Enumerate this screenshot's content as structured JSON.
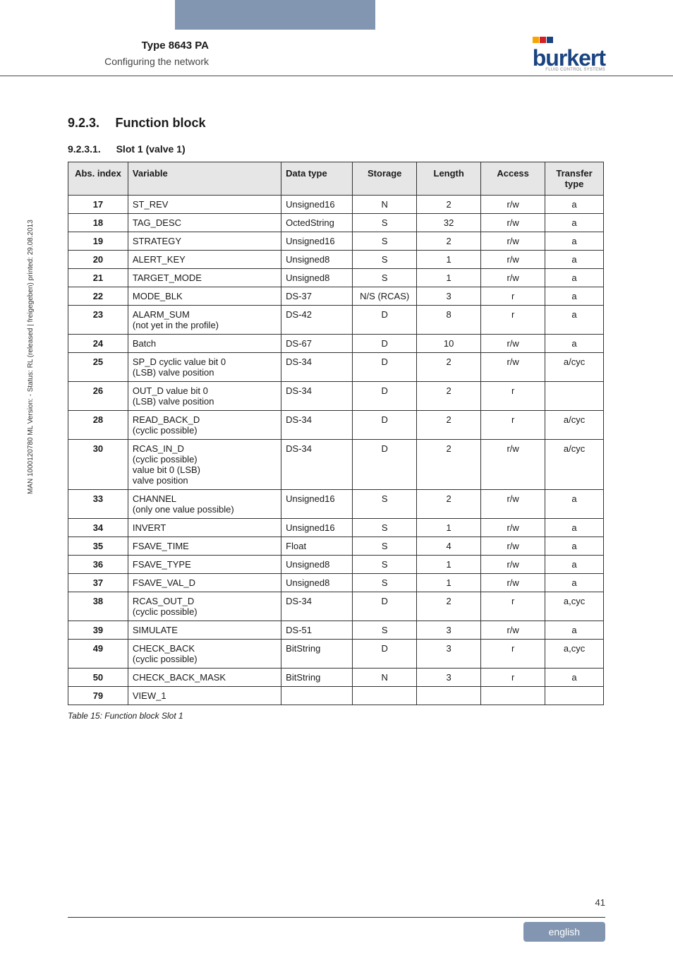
{
  "header": {
    "type_label": "Type 8643 PA",
    "subtitle": "Configuring the network",
    "logo_name": "burkert",
    "logo_sub": "FLUID CONTROL SYSTEMS",
    "logo_bar_colors": [
      "#f7a600",
      "#d41f26",
      "#1a4480"
    ],
    "logo_text_color": "#1a4480",
    "blue_bar_color": "#8396b1"
  },
  "side_text": "MAN 1000120780 ML Version: - Status: RL (released | freigegeben) printed: 29.08.2013",
  "section": {
    "num": "9.2.3.",
    "title": "Function block"
  },
  "subsection": {
    "num": "9.2.3.1.",
    "title": "Slot 1 (valve 1)"
  },
  "table": {
    "columns": [
      "Abs. index",
      "Variable",
      "Data type",
      "Storage",
      "Length",
      "Access",
      "Transfer type"
    ],
    "rows": [
      [
        "17",
        "ST_REV",
        "Unsigned16",
        "N",
        "2",
        "r/w",
        "a"
      ],
      [
        "18",
        "TAG_DESC",
        "OctedString",
        "S",
        "32",
        "r/w",
        "a"
      ],
      [
        "19",
        "STRATEGY",
        "Unsigned16",
        "S",
        "2",
        "r/w",
        "a"
      ],
      [
        "20",
        "ALERT_KEY",
        "Unsigned8",
        "S",
        "1",
        "r/w",
        "a"
      ],
      [
        "21",
        "TARGET_MODE",
        "Unsigned8",
        "S",
        "1",
        "r/w",
        "a"
      ],
      [
        "22",
        "MODE_BLK",
        "DS-37",
        "N/S (RCAS)",
        "3",
        "r",
        "a"
      ],
      [
        "23",
        "ALARM_SUM\n(not yet in the profile)",
        "DS-42",
        "D",
        "8",
        "r",
        "a"
      ],
      [
        "24",
        "Batch",
        "DS-67",
        "D",
        "10",
        "r/w",
        "a"
      ],
      [
        "25",
        "SP_D cyclic value bit 0\n(LSB) valve position",
        "DS-34",
        "D",
        "2",
        "r/w",
        "a/cyc"
      ],
      [
        "26",
        "OUT_D value bit 0\n(LSB) valve position",
        "DS-34",
        "D",
        "2",
        "r",
        ""
      ],
      [
        "28",
        "READ_BACK_D\n(cyclic possible)",
        "DS-34",
        "D",
        "2",
        "r",
        "a/cyc"
      ],
      [
        "30",
        "RCAS_IN_D\n(cyclic possible)\nvalue bit 0 (LSB)\nvalve position",
        "DS-34",
        "D",
        "2",
        "r/w",
        "a/cyc"
      ],
      [
        "33",
        "CHANNEL\n(only one value possible)",
        "Unsigned16",
        "S",
        "2",
        "r/w",
        "a"
      ],
      [
        "34",
        "INVERT",
        "Unsigned16",
        "S",
        "1",
        "r/w",
        "a"
      ],
      [
        "35",
        "FSAVE_TIME",
        "Float",
        "S",
        "4",
        "r/w",
        "a"
      ],
      [
        "36",
        "FSAVE_TYPE",
        "Unsigned8",
        "S",
        "1",
        "r/w",
        "a"
      ],
      [
        "37",
        "FSAVE_VAL_D",
        "Unsigned8",
        "S",
        "1",
        "r/w",
        "a"
      ],
      [
        "38",
        "RCAS_OUT_D\n(cyclic possible)",
        "DS-34",
        "D",
        "2",
        "r",
        "a,cyc"
      ],
      [
        "39",
        "SIMULATE",
        "DS-51",
        "S",
        "3",
        "r/w",
        "a"
      ],
      [
        "49",
        "CHECK_BACK\n(cyclic possible)",
        "BitString",
        "D",
        "3",
        "r",
        "a,cyc"
      ],
      [
        "50",
        "CHECK_BACK_MASK",
        "BitString",
        "N",
        "3",
        "r",
        "a"
      ],
      [
        "79",
        "VIEW_1",
        "",
        "",
        "",
        "",
        ""
      ]
    ],
    "header_bg": "#e6e6e6",
    "border_color": "#333333"
  },
  "caption": "Table 15:   Function block Slot 1",
  "page_number": "41",
  "lang_tab": "english",
  "colors": {
    "text": "#1a1a1a",
    "background": "#ffffff",
    "tab_bg": "#8396b1"
  }
}
